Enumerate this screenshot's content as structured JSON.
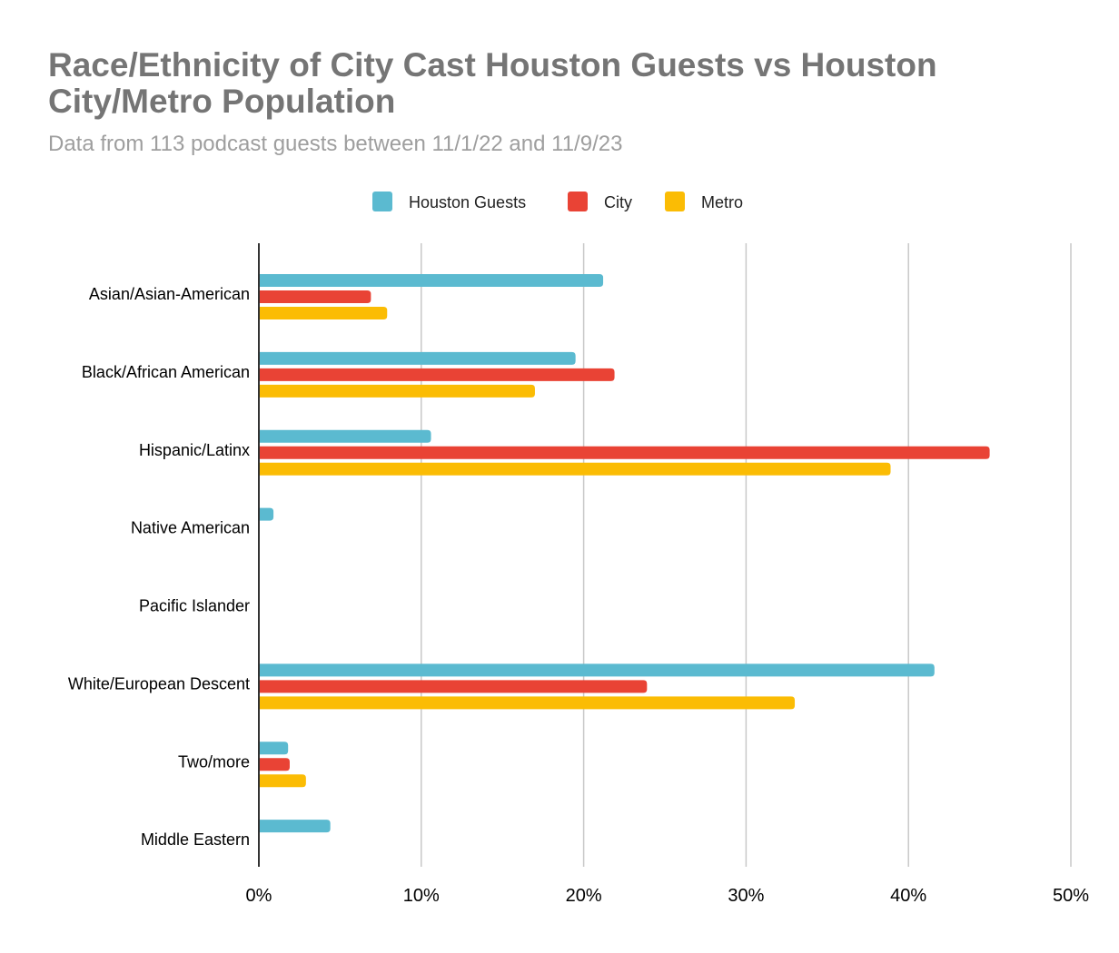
{
  "chart_data": {
    "type": "bar",
    "orientation": "horizontal",
    "title": "Race/Ethnicity of City Cast Houston Guests vs Houston City/Metro Population",
    "subtitle": "Data from 113 podcast guests between 11/1/22 and 11/9/23",
    "xlabel": "",
    "ylabel": "",
    "xlim": [
      0,
      50
    ],
    "x_ticks": [
      "0%",
      "10%",
      "20%",
      "30%",
      "40%",
      "50%"
    ],
    "grid": true,
    "legend": "top",
    "categories": [
      "Asian/Asian-American",
      "Black/African American",
      "Hispanic/Latinx",
      "Native American",
      "Pacific Islander",
      "White/European Descent",
      "Two/more",
      "Middle Eastern"
    ],
    "series": [
      {
        "name": "Houston Guests",
        "color": "#5bbad0",
        "values": [
          21.2,
          19.5,
          10.6,
          0.9,
          0,
          41.6,
          1.8,
          4.4
        ]
      },
      {
        "name": "City",
        "color": "#e94335",
        "values": [
          6.9,
          21.9,
          45.0,
          0,
          0,
          23.9,
          1.9,
          0
        ]
      },
      {
        "name": "Metro",
        "color": "#fbbc04",
        "values": [
          7.9,
          17.0,
          38.9,
          0,
          0,
          33.0,
          2.9,
          0
        ]
      }
    ]
  }
}
